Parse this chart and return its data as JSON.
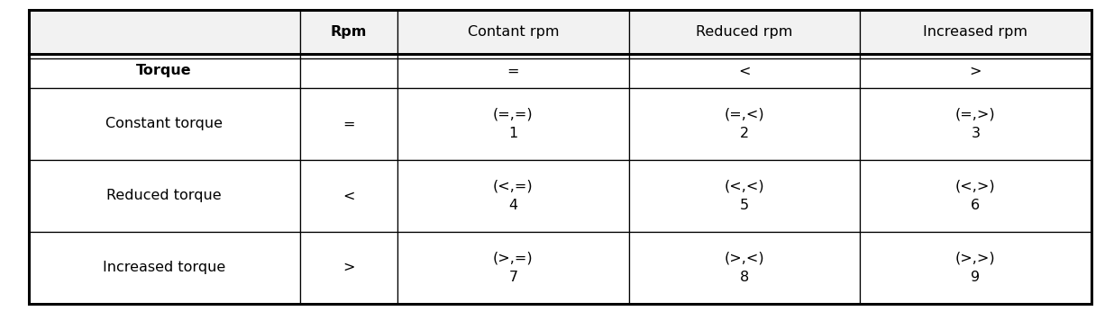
{
  "col_headers": [
    "",
    "Rpm",
    "Contant rpm",
    "Reduced rpm",
    "Increased rpm"
  ],
  "row_torque": [
    "Torque",
    "",
    "=",
    "<",
    ">"
  ],
  "rows": [
    [
      "Constant torque",
      "=",
      "(=,=)\n1",
      "(=,<)\n2",
      "(=,>)\n3"
    ],
    [
      "Reduced torque",
      "<",
      "(<,=)\n4",
      "(<,<)\n5",
      "(<,>)\n6"
    ],
    [
      "Increased torque",
      ">",
      "(>,=)\n7",
      "(>,<)\n8",
      "(>,>)\n9"
    ]
  ],
  "col_props": [
    0.23,
    0.083,
    0.196,
    0.196,
    0.196
  ],
  "background_color": "#ffffff",
  "border_color": "#000000",
  "light_bg": "#f2f2f2"
}
